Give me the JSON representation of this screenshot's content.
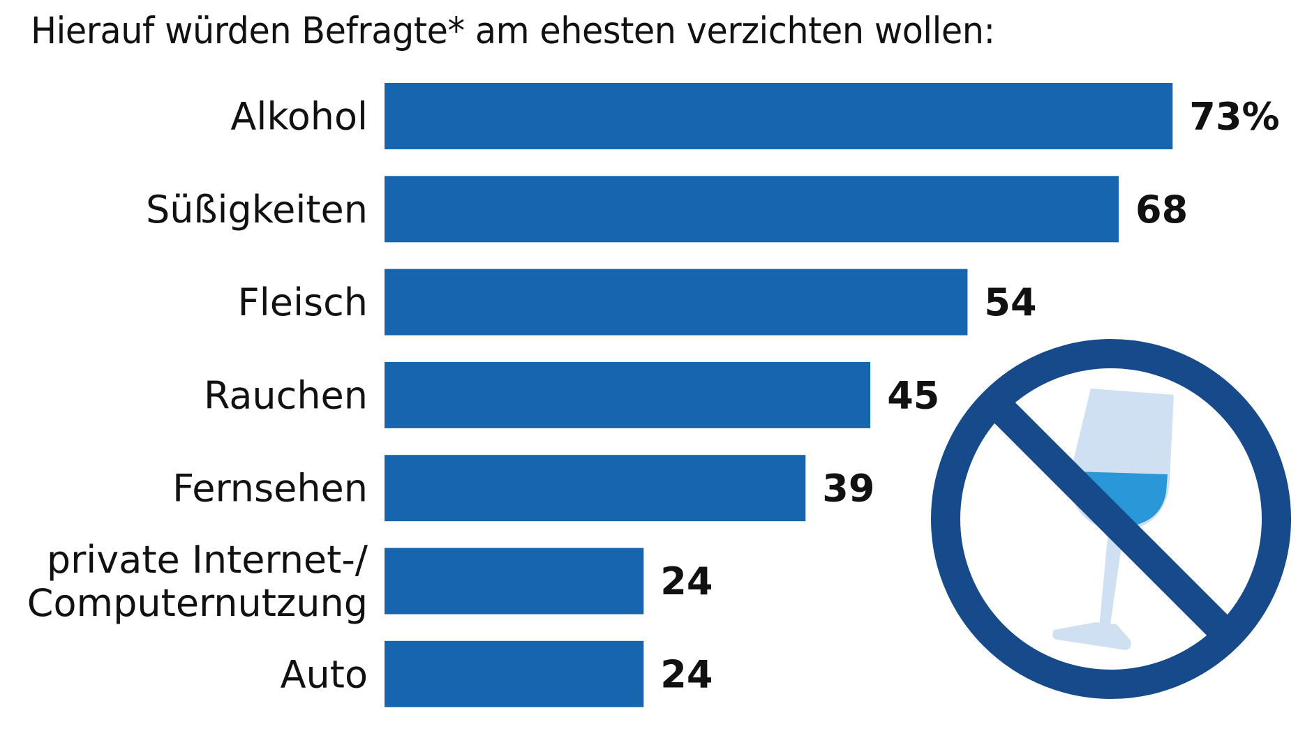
{
  "chart_data": {
    "type": "bar",
    "orientation": "horizontal",
    "title": "Hierauf würden Befragte* am ehesten verzichten wollen:",
    "categories": [
      [
        "Alkohol"
      ],
      [
        "Süßigkeiten"
      ],
      [
        "Fleisch"
      ],
      [
        "Rauchen"
      ],
      [
        "Fernsehen"
      ],
      [
        "private Internet-/",
        "Computernutzung"
      ],
      [
        "Auto"
      ]
    ],
    "values": [
      73,
      68,
      54,
      45,
      39,
      24,
      24
    ],
    "value_labels": [
      "73%",
      "68",
      "54",
      "45",
      "39",
      "24",
      "24"
    ],
    "unit": "%",
    "xlabel": "",
    "ylabel": "",
    "xlim": [
      0,
      100
    ],
    "grid": false,
    "legend": "none",
    "colors": {
      "bar": "#1665ae",
      "text": "#111111",
      "icon_ring": "#164a8a",
      "glass": "#cfe0f2",
      "liquid": "#2a98d8"
    }
  },
  "illustration": {
    "icon": "no-alcohol-icon"
  }
}
